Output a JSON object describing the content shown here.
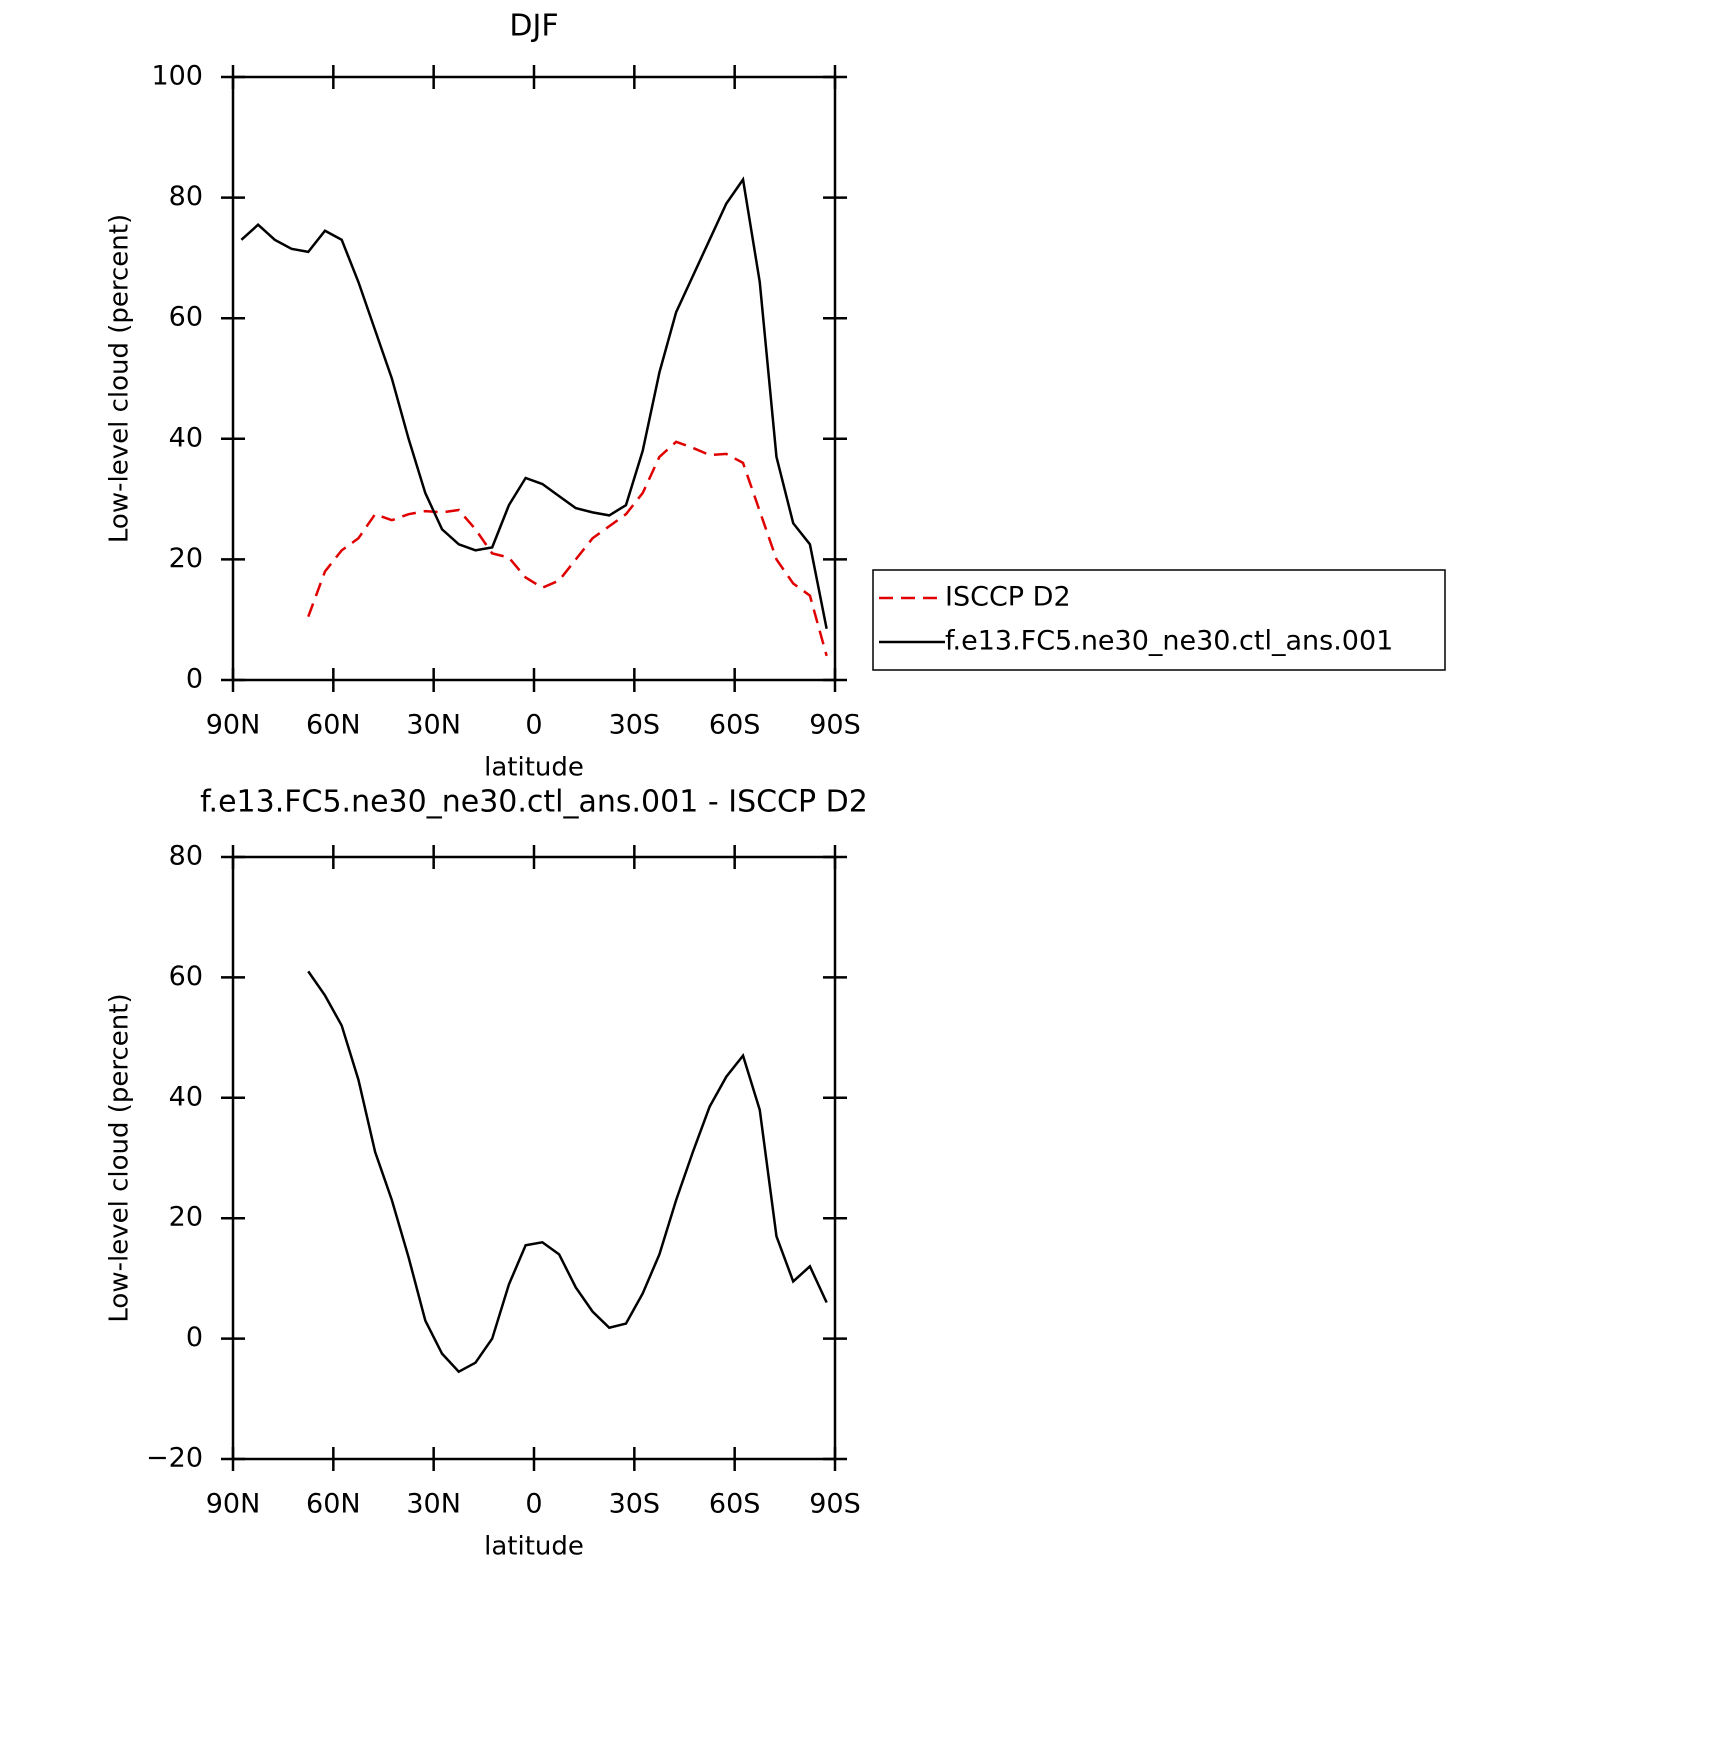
{
  "chart_data": [
    {
      "type": "line",
      "title": "DJF",
      "xlabel": "latitude",
      "ylabel": "Low-level cloud (percent)",
      "x": [
        87.5,
        82.5,
        77.5,
        72.5,
        67.5,
        62.5,
        57.5,
        52.5,
        47.5,
        42.5,
        37.5,
        32.5,
        27.5,
        22.5,
        17.5,
        12.5,
        7.5,
        2.5,
        -2.5,
        -7.5,
        -12.5,
        -17.5,
        -22.5,
        -27.5,
        -32.5,
        -37.5,
        -42.5,
        -47.5,
        -52.5,
        -57.5,
        -62.5,
        -67.5,
        -72.5,
        -77.5,
        -82.5,
        -87.5
      ],
      "xlim": [
        90,
        -90
      ],
      "xticks": [
        {
          "value": 90,
          "label": "90N"
        },
        {
          "value": 60,
          "label": "60N"
        },
        {
          "value": 30,
          "label": "30N"
        },
        0,
        {
          "value": -30,
          "label": "30S"
        },
        {
          "value": -60,
          "label": "60S"
        },
        {
          "value": -90,
          "label": "90S"
        }
      ],
      "ylim": [
        0,
        100
      ],
      "yticks": [
        0,
        20,
        40,
        60,
        80,
        100
      ],
      "legend": "right",
      "series": [
        {
          "name": "ISCCP D2",
          "color": "#e00000",
          "dash": true,
          "values": [
            null,
            null,
            null,
            null,
            10.5,
            18,
            21.5,
            23.5,
            27.5,
            26.5,
            27.5,
            28,
            27.8,
            28.2,
            25,
            21,
            20.3,
            17,
            15.3,
            16.5,
            20,
            23.5,
            25.5,
            27.5,
            31,
            37,
            39.5,
            38.5,
            37.3,
            37.5,
            36,
            28,
            20,
            16,
            14,
            4
          ]
        },
        {
          "name": "f.e13.FC5.ne30_ne30.ctl_ans.001",
          "color": "#000000",
          "dash": false,
          "values": [
            73,
            75.5,
            73,
            71.5,
            71,
            74.5,
            73,
            66,
            58,
            50,
            40,
            31,
            25,
            22.5,
            21.5,
            22,
            29,
            33.5,
            32.5,
            30.5,
            28.5,
            27.8,
            27.3,
            29,
            38,
            51,
            61,
            67,
            73,
            79,
            83,
            66,
            37,
            26,
            22.5,
            8.5
          ]
        }
      ]
    },
    {
      "type": "line",
      "title": "f.e13.FC5.ne30_ne30.ctl_ans.001 - ISCCP D2",
      "xlabel": "latitude",
      "ylabel": "Low-level cloud (percent)",
      "x": [
        87.5,
        82.5,
        77.5,
        72.5,
        67.5,
        62.5,
        57.5,
        52.5,
        47.5,
        42.5,
        37.5,
        32.5,
        27.5,
        22.5,
        17.5,
        12.5,
        7.5,
        2.5,
        -2.5,
        -7.5,
        -12.5,
        -17.5,
        -22.5,
        -27.5,
        -32.5,
        -37.5,
        -42.5,
        -47.5,
        -52.5,
        -57.5,
        -62.5,
        -67.5,
        -72.5,
        -77.5,
        -82.5,
        -87.5
      ],
      "xlim": [
        90,
        -90
      ],
      "xticks": [
        {
          "value": 90,
          "label": "90N"
        },
        {
          "value": 60,
          "label": "60N"
        },
        {
          "value": 30,
          "label": "30N"
        },
        0,
        {
          "value": -30,
          "label": "30S"
        },
        {
          "value": -60,
          "label": "60S"
        },
        {
          "value": -90,
          "label": "90S"
        }
      ],
      "ylim": [
        -20,
        80
      ],
      "yticks": [
        {
          "value": -20,
          "label": "−20"
        },
        0,
        20,
        40,
        60,
        80
      ],
      "series": [
        {
          "color": "#000000",
          "dash": false,
          "values": [
            null,
            null,
            null,
            null,
            61,
            57,
            52,
            43,
            31,
            23,
            13.5,
            3,
            -2.5,
            -5.5,
            -4,
            0,
            9,
            15.5,
            16,
            14,
            8.5,
            4.5,
            1.8,
            2.5,
            7.5,
            14,
            23,
            31,
            38.5,
            43.5,
            47,
            38,
            17,
            9.5,
            12,
            6
          ]
        }
      ]
    }
  ]
}
